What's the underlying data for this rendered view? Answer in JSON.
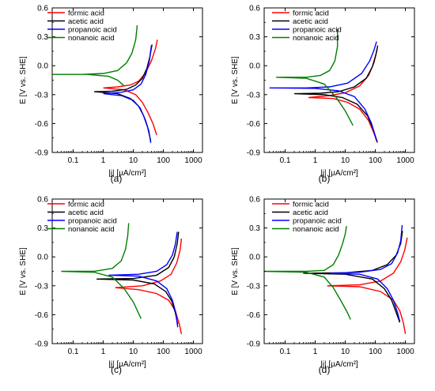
{
  "chart_data": [
    {
      "type": "line",
      "panel_label": "(a)",
      "xlabel": "|j| [μA/cm²]",
      "ylabel": "E [V vs. SHE]",
      "xscale": "log",
      "xlim": [
        0.02,
        2000
      ],
      "ylim": [
        -0.9,
        0.6
      ],
      "x_ticks": [
        "0.1",
        "1",
        "10",
        "100",
        "1000"
      ],
      "y_ticks": [
        "-0.9",
        "-0.6",
        "-0.3",
        "0.0",
        "0.3",
        "0.6"
      ],
      "legend_position": "top-left",
      "series": [
        {
          "name": "formic acid",
          "color": "#ff0000",
          "anodic": [
            [
              1,
              -0.23
            ],
            [
              3,
              -0.22
            ],
            [
              8,
              -0.2
            ],
            [
              15,
              -0.16
            ],
            [
              25,
              -0.08
            ],
            [
              40,
              0.05
            ],
            [
              55,
              0.18
            ],
            [
              63,
              0.27
            ]
          ],
          "cathodic": [
            [
              1,
              -0.23
            ],
            [
              5,
              -0.25
            ],
            [
              12,
              -0.3
            ],
            [
              20,
              -0.38
            ],
            [
              30,
              -0.48
            ],
            [
              45,
              -0.6
            ],
            [
              60,
              -0.72
            ]
          ]
        },
        {
          "name": "acetic acid",
          "color": "#000000",
          "anodic": [
            [
              0.5,
              -0.27
            ],
            [
              2,
              -0.265
            ],
            [
              6,
              -0.245
            ],
            [
              12,
              -0.2
            ],
            [
              20,
              -0.13
            ],
            [
              28,
              -0.03
            ],
            [
              36,
              0.1
            ],
            [
              42,
              0.22
            ]
          ],
          "cathodic": [
            [
              0.5,
              -0.27
            ],
            [
              3,
              -0.29
            ],
            [
              8,
              -0.34
            ],
            [
              15,
              -0.42
            ],
            [
              22,
              -0.52
            ],
            [
              30,
              -0.64
            ],
            [
              38,
              -0.78
            ]
          ]
        },
        {
          "name": "propanoic acid",
          "color": "#0000ff",
          "anodic": [
            [
              1,
              -0.29
            ],
            [
              4,
              -0.275
            ],
            [
              10,
              -0.25
            ],
            [
              18,
              -0.19
            ],
            [
              26,
              -0.09
            ],
            [
              34,
              0.05
            ],
            [
              40,
              0.21
            ]
          ],
          "cathodic": [
            [
              1,
              -0.29
            ],
            [
              4,
              -0.31
            ],
            [
              10,
              -0.36
            ],
            [
              17,
              -0.44
            ],
            [
              25,
              -0.56
            ],
            [
              33,
              -0.68
            ],
            [
              38,
              -0.8
            ]
          ]
        },
        {
          "name": "nonanoic acid",
          "color": "#008000",
          "anodic": [
            [
              0.02,
              -0.09
            ],
            [
              0.2,
              -0.09
            ],
            [
              1,
              -0.08
            ],
            [
              3,
              -0.05
            ],
            [
              6,
              0.03
            ],
            [
              9,
              0.13
            ],
            [
              12,
              0.27
            ],
            [
              13.5,
              0.42
            ]
          ],
          "cathodic": [
            [
              0.02,
              -0.09
            ],
            [
              0.3,
              -0.09
            ],
            [
              1.5,
              -0.11
            ],
            [
              3,
              -0.15
            ],
            [
              5,
              -0.21
            ]
          ]
        }
      ]
    },
    {
      "type": "line",
      "panel_label": "(b)",
      "xlabel": "|j| [μA/cm²]",
      "ylabel": "E [V vs. SHE]",
      "xscale": "log",
      "xlim": [
        0.02,
        2000
      ],
      "ylim": [
        -0.9,
        0.6
      ],
      "x_ticks": [
        "0.1",
        "1",
        "10",
        "100",
        "1000"
      ],
      "y_ticks": [
        "-0.9",
        "-0.6",
        "-0.3",
        "0.0",
        "0.3",
        "0.6"
      ],
      "legend_position": "top-right",
      "series": [
        {
          "name": "formic acid",
          "color": "#ff0000",
          "anodic": [
            [
              0.6,
              -0.33
            ],
            [
              3,
              -0.31
            ],
            [
              10,
              -0.28
            ],
            [
              30,
              -0.21
            ],
            [
              60,
              -0.1
            ],
            [
              90,
              0.03
            ],
            [
              115,
              0.17
            ]
          ],
          "cathodic": [
            [
              0.6,
              -0.33
            ],
            [
              4,
              -0.34
            ],
            [
              12,
              -0.38
            ],
            [
              30,
              -0.45
            ],
            [
              60,
              -0.57
            ],
            [
              90,
              -0.7
            ],
            [
              118,
              -0.8
            ]
          ]
        },
        {
          "name": "acetic acid",
          "color": "#000000",
          "anodic": [
            [
              0.2,
              -0.29
            ],
            [
              1.5,
              -0.285
            ],
            [
              6,
              -0.27
            ],
            [
              20,
              -0.22
            ],
            [
              50,
              -0.13
            ],
            [
              80,
              -0.01
            ],
            [
              105,
              0.12
            ],
            [
              120,
              0.21
            ]
          ],
          "cathodic": [
            [
              0.2,
              -0.29
            ],
            [
              2,
              -0.3
            ],
            [
              8,
              -0.33
            ],
            [
              25,
              -0.4
            ],
            [
              55,
              -0.52
            ],
            [
              85,
              -0.66
            ],
            [
              115,
              -0.79
            ]
          ]
        },
        {
          "name": "propanoic acid",
          "color": "#0000ff",
          "anodic": [
            [
              0.03,
              -0.23
            ],
            [
              0.5,
              -0.23
            ],
            [
              3,
              -0.22
            ],
            [
              12,
              -0.18
            ],
            [
              35,
              -0.08
            ],
            [
              65,
              0.05
            ],
            [
              90,
              0.16
            ],
            [
              110,
              0.25
            ]
          ],
          "cathodic": [
            [
              0.03,
              -0.23
            ],
            [
              1,
              -0.235
            ],
            [
              6,
              -0.26
            ],
            [
              20,
              -0.32
            ],
            [
              45,
              -0.45
            ],
            [
              75,
              -0.6
            ],
            [
              110,
              -0.78
            ]
          ]
        },
        {
          "name": "nonanoic acid",
          "color": "#008000",
          "anodic": [
            [
              0.05,
              -0.12
            ],
            [
              0.5,
              -0.12
            ],
            [
              1.5,
              -0.1
            ],
            [
              3,
              -0.05
            ],
            [
              4.5,
              0.05
            ],
            [
              5.5,
              0.2
            ],
            [
              5.5,
              0.38
            ]
          ],
          "cathodic": [
            [
              0.05,
              -0.12
            ],
            [
              0.5,
              -0.13
            ],
            [
              2,
              -0.19
            ],
            [
              5,
              -0.33
            ],
            [
              10,
              -0.47
            ],
            [
              18,
              -0.62
            ]
          ]
        }
      ]
    },
    {
      "type": "line",
      "panel_label": "(c)",
      "xlabel": "|j| [μA/cm²]",
      "ylabel": "E [V vs. SHE]",
      "xscale": "log",
      "xlim": [
        0.02,
        2000
      ],
      "ylim": [
        -0.9,
        0.6
      ],
      "x_ticks": [
        "0.1",
        "1",
        "10",
        "100",
        "1000"
      ],
      "y_ticks": [
        "-0.9",
        "-0.6",
        "-0.3",
        "0.0",
        "0.3",
        "0.6"
      ],
      "legend_position": "top-right",
      "series": [
        {
          "name": "formic acid",
          "color": "#ff0000",
          "anodic": [
            [
              2.5,
              -0.32
            ],
            [
              20,
              -0.3
            ],
            [
              80,
              -0.25
            ],
            [
              180,
              -0.18
            ],
            [
              280,
              -0.06
            ],
            [
              360,
              0.07
            ],
            [
              400,
              0.19
            ]
          ],
          "cathodic": [
            [
              2.5,
              -0.32
            ],
            [
              15,
              -0.34
            ],
            [
              60,
              -0.38
            ],
            [
              150,
              -0.45
            ],
            [
              250,
              -0.56
            ],
            [
              340,
              -0.7
            ],
            [
              400,
              -0.8
            ]
          ]
        },
        {
          "name": "acetic acid",
          "color": "#000000",
          "anodic": [
            [
              0.6,
              -0.23
            ],
            [
              10,
              -0.225
            ],
            [
              60,
              -0.19
            ],
            [
              150,
              -0.11
            ],
            [
              230,
              0.0
            ],
            [
              290,
              0.14
            ],
            [
              320,
              0.26
            ]
          ],
          "cathodic": [
            [
              0.6,
              -0.23
            ],
            [
              10,
              -0.24
            ],
            [
              50,
              -0.28
            ],
            [
              120,
              -0.36
            ],
            [
              190,
              -0.46
            ],
            [
              250,
              -0.58
            ],
            [
              300,
              -0.7
            ]
          ]
        },
        {
          "name": "propanoic acid",
          "color": "#0000ff",
          "anodic": [
            [
              1.5,
              -0.19
            ],
            [
              15,
              -0.18
            ],
            [
              60,
              -0.15
            ],
            [
              130,
              -0.08
            ],
            [
              200,
              0.02
            ],
            [
              250,
              0.13
            ],
            [
              290,
              0.26
            ]
          ],
          "cathodic": [
            [
              1.5,
              -0.19
            ],
            [
              15,
              -0.2
            ],
            [
              60,
              -0.25
            ],
            [
              130,
              -0.33
            ],
            [
              200,
              -0.45
            ],
            [
              260,
              -0.58
            ],
            [
              300,
              -0.73
            ]
          ]
        },
        {
          "name": "nonanoic acid",
          "color": "#008000",
          "anodic": [
            [
              0.04,
              -0.15
            ],
            [
              0.5,
              -0.15
            ],
            [
              2,
              -0.12
            ],
            [
              4,
              -0.04
            ],
            [
              5.5,
              0.08
            ],
            [
              6.5,
              0.22
            ],
            [
              7,
              0.35
            ]
          ],
          "cathodic": [
            [
              0.04,
              -0.15
            ],
            [
              0.5,
              -0.16
            ],
            [
              2,
              -0.21
            ],
            [
              5,
              -0.33
            ],
            [
              10,
              -0.47
            ],
            [
              18,
              -0.64
            ]
          ]
        }
      ]
    },
    {
      "type": "line",
      "panel_label": "(d)",
      "xlabel": "|j| [μA/cm²]",
      "ylabel": "E [V vs. SHE]",
      "xscale": "log",
      "xlim": [
        0.02,
        2000
      ],
      "ylim": [
        -0.9,
        0.6
      ],
      "x_ticks": [
        "0.1",
        "1",
        "10",
        "100",
        "1000"
      ],
      "y_ticks": [
        "-0.9",
        "-0.6",
        "-0.3",
        "0.0",
        "0.3",
        "0.6"
      ],
      "legend_position": "top-right",
      "series": [
        {
          "name": "formic acid",
          "color": "#ff0000",
          "anodic": [
            [
              2.5,
              -0.3
            ],
            [
              30,
              -0.29
            ],
            [
              150,
              -0.25
            ],
            [
              400,
              -0.17
            ],
            [
              700,
              -0.05
            ],
            [
              950,
              0.07
            ],
            [
              1150,
              0.2
            ]
          ],
          "cathodic": [
            [
              2.5,
              -0.3
            ],
            [
              30,
              -0.31
            ],
            [
              150,
              -0.36
            ],
            [
              400,
              -0.45
            ],
            [
              650,
              -0.56
            ],
            [
              850,
              -0.68
            ],
            [
              1000,
              -0.8
            ]
          ]
        },
        {
          "name": "acetic acid",
          "color": "#000000",
          "anodic": [
            [
              0.4,
              -0.17
            ],
            [
              10,
              -0.165
            ],
            [
              80,
              -0.14
            ],
            [
              250,
              -0.08
            ],
            [
              500,
              0.02
            ],
            [
              700,
              0.14
            ],
            [
              800,
              0.27
            ]
          ],
          "cathodic": [
            [
              0.4,
              -0.17
            ],
            [
              10,
              -0.18
            ],
            [
              80,
              -0.23
            ],
            [
              200,
              -0.33
            ],
            [
              350,
              -0.45
            ],
            [
              500,
              -0.58
            ],
            [
              650,
              -0.68
            ]
          ]
        },
        {
          "name": "propanoic acid",
          "color": "#0000ff",
          "anodic": [
            [
              3,
              -0.17
            ],
            [
              30,
              -0.16
            ],
            [
              150,
              -0.13
            ],
            [
              350,
              -0.07
            ],
            [
              550,
              0.04
            ],
            [
              700,
              0.17
            ],
            [
              780,
              0.33
            ]
          ],
          "cathodic": [
            [
              3,
              -0.17
            ],
            [
              30,
              -0.18
            ],
            [
              120,
              -0.23
            ],
            [
              250,
              -0.33
            ],
            [
              400,
              -0.45
            ],
            [
              550,
              -0.58
            ],
            [
              650,
              -0.67
            ]
          ]
        },
        {
          "name": "nonanoic acid",
          "color": "#008000",
          "anodic": [
            [
              0.02,
              -0.15
            ],
            [
              0.5,
              -0.15
            ],
            [
              2,
              -0.14
            ],
            [
              4,
              -0.08
            ],
            [
              6,
              0.02
            ],
            [
              8,
              0.13
            ],
            [
              10,
              0.24
            ],
            [
              11,
              0.32
            ]
          ],
          "cathodic": [
            [
              0.02,
              -0.15
            ],
            [
              0.5,
              -0.16
            ],
            [
              2,
              -0.21
            ],
            [
              4,
              -0.32
            ],
            [
              7,
              -0.45
            ],
            [
              11,
              -0.56
            ],
            [
              15,
              -0.65
            ]
          ]
        }
      ]
    }
  ]
}
